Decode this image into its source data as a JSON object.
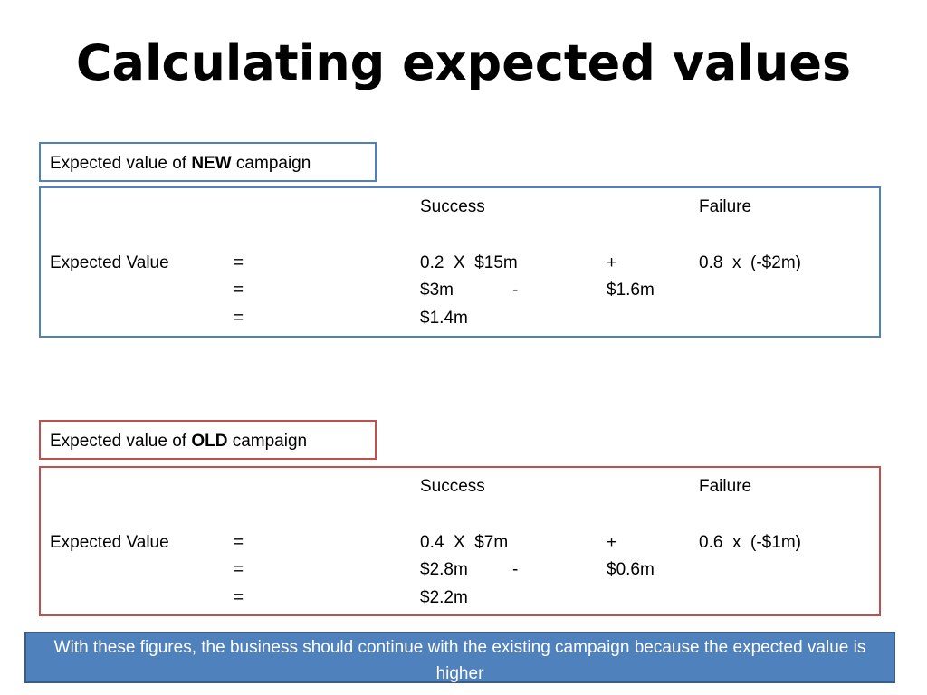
{
  "slide": {
    "title": "Calculating expected values"
  },
  "new_campaign": {
    "heading_prefix": "Expected value of ",
    "heading_bold": "NEW",
    "heading_suffix": " campaign",
    "success_label": "Success",
    "failure_label": "Failure",
    "row1": {
      "label": "Expected Value",
      "eq": "=",
      "success": "0.2  X  $15m",
      "op": "+",
      "failure": "0.8  x  (-$2m)"
    },
    "row2": {
      "eq": "=",
      "success": "$3m",
      "op": "-",
      "failure": "$1.6m"
    },
    "row3": {
      "eq": "=",
      "result": "$1.4m"
    }
  },
  "old_campaign": {
    "heading_prefix": "Expected value of ",
    "heading_bold": "OLD",
    "heading_suffix": " campaign",
    "success_label": "Success",
    "failure_label": "Failure",
    "row1": {
      "label": "Expected Value",
      "eq": "=",
      "success": "0.4  X  $7m",
      "op": "+",
      "failure": "0.6  x  (-$1m)"
    },
    "row2": {
      "eq": "=",
      "success": "$2.8m",
      "op": "-",
      "failure": "$0.6m"
    },
    "row3": {
      "eq": "=",
      "result": "$2.2m"
    }
  },
  "conclusion": {
    "text": "With these figures, the business should continue with the existing campaign because the expected value is higher"
  },
  "colors": {
    "new_border": "#4f81bd",
    "old_border": "#c0504d",
    "conclusion_fill": "#4f81bd",
    "conclusion_text": "#ffffff"
  }
}
